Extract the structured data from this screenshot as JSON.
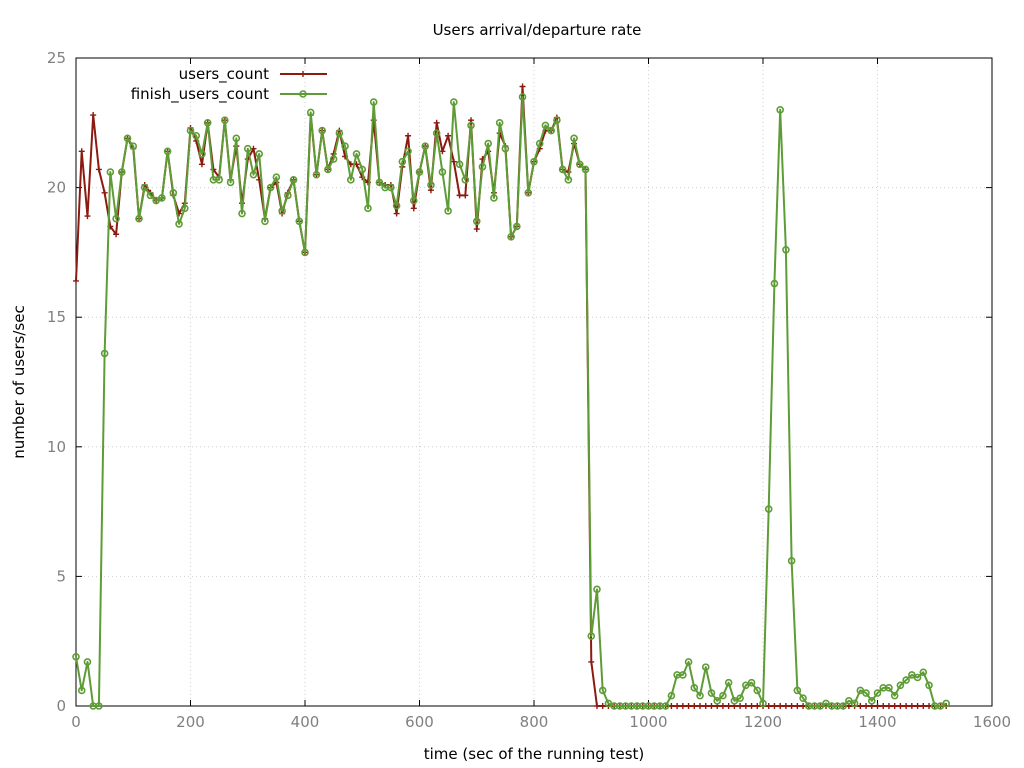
{
  "chart_data": {
    "type": "line",
    "title": "Users arrival/departure rate",
    "xlabel": "time (sec of the running test)",
    "ylabel": "number of users/sec",
    "xlim": [
      0,
      1600
    ],
    "ylim": [
      0,
      25
    ],
    "xticks": [
      0,
      200,
      400,
      600,
      800,
      1000,
      1200,
      1400,
      1600
    ],
    "yticks": [
      0,
      5,
      10,
      15,
      20,
      25
    ],
    "grid": true,
    "legend_position": "top-left",
    "series": [
      {
        "name": "users_count",
        "color": "#8b1a10",
        "marker": "plus",
        "x": [
          0,
          10,
          20,
          30,
          40,
          50,
          60,
          70,
          80,
          90,
          100,
          110,
          120,
          130,
          140,
          150,
          160,
          170,
          180,
          190,
          200,
          210,
          220,
          230,
          240,
          250,
          260,
          270,
          280,
          290,
          300,
          310,
          320,
          330,
          340,
          350,
          360,
          370,
          380,
          390,
          400,
          410,
          420,
          430,
          440,
          450,
          460,
          470,
          480,
          490,
          500,
          510,
          520,
          530,
          540,
          550,
          560,
          570,
          580,
          590,
          600,
          610,
          620,
          630,
          640,
          650,
          660,
          670,
          680,
          690,
          700,
          710,
          720,
          730,
          740,
          750,
          760,
          770,
          780,
          790,
          800,
          810,
          820,
          830,
          840,
          850,
          860,
          870,
          880,
          890,
          900,
          910,
          920,
          930,
          940,
          950,
          960,
          970,
          980,
          990,
          1000,
          1010,
          1020,
          1030,
          1040,
          1050,
          1060,
          1070,
          1080,
          1090,
          1100,
          1110,
          1120,
          1130,
          1140,
          1150,
          1160,
          1170,
          1180,
          1190,
          1200,
          1210,
          1220,
          1230,
          1240,
          1250,
          1260,
          1270,
          1280,
          1290,
          1300,
          1310,
          1320,
          1330,
          1340,
          1350,
          1360,
          1370,
          1380,
          1390,
          1400,
          1410,
          1420,
          1430,
          1440,
          1450,
          1460,
          1470,
          1480,
          1490,
          1500,
          1510,
          1520
        ],
        "values": [
          16.4,
          21.4,
          18.9,
          22.8,
          20.7,
          19.8,
          18.5,
          18.2,
          20.6,
          21.9,
          21.5,
          18.8,
          20.1,
          19.8,
          19.5,
          19.6,
          21.4,
          19.7,
          19.0,
          19.4,
          22.3,
          21.8,
          20.9,
          22.5,
          20.7,
          20.4,
          22.6,
          20.3,
          21.6,
          19.4,
          21.1,
          21.5,
          20.3,
          18.8,
          20.0,
          20.2,
          19.0,
          19.8,
          20.3,
          18.7,
          17.5,
          22.8,
          20.5,
          22.2,
          20.7,
          21.3,
          22.2,
          21.2,
          20.9,
          20.9,
          20.4,
          20.2,
          22.6,
          20.2,
          20.1,
          20.1,
          19.0,
          20.8,
          22.0,
          19.2,
          20.6,
          21.6,
          19.9,
          22.5,
          21.4,
          22.0,
          21.0,
          19.7,
          19.7,
          22.6,
          18.4,
          21.1,
          21.4,
          19.8,
          22.1,
          21.6,
          18.1,
          18.5,
          23.9,
          19.8,
          21.0,
          21.5,
          22.2,
          22.2,
          22.7,
          20.7,
          20.6,
          21.7,
          20.9,
          20.7,
          1.7,
          0,
          0,
          0,
          0,
          0,
          0,
          0,
          0,
          0,
          0,
          0,
          0,
          0,
          0,
          0,
          0,
          0,
          0,
          0,
          0,
          0,
          0,
          0,
          0,
          0,
          0,
          0,
          0,
          0,
          0,
          0,
          0,
          0,
          0,
          0,
          0,
          0,
          0,
          0,
          0,
          0,
          0,
          0,
          0,
          0,
          0,
          0,
          0,
          0,
          0,
          0,
          0,
          0,
          0,
          0,
          0,
          0,
          0,
          0,
          0,
          0,
          0
        ]
      },
      {
        "name": "finish_users_count",
        "color": "#5e9c36",
        "marker": "circle",
        "x": [
          0,
          10,
          20,
          30,
          40,
          50,
          60,
          70,
          80,
          90,
          100,
          110,
          120,
          130,
          140,
          150,
          160,
          170,
          180,
          190,
          200,
          210,
          220,
          230,
          240,
          250,
          260,
          270,
          280,
          290,
          300,
          310,
          320,
          330,
          340,
          350,
          360,
          370,
          380,
          390,
          400,
          410,
          420,
          430,
          440,
          450,
          460,
          470,
          480,
          490,
          500,
          510,
          520,
          530,
          540,
          550,
          560,
          570,
          580,
          590,
          600,
          610,
          620,
          630,
          640,
          650,
          660,
          670,
          680,
          690,
          700,
          710,
          720,
          730,
          740,
          750,
          760,
          770,
          780,
          790,
          800,
          810,
          820,
          830,
          840,
          850,
          860,
          870,
          880,
          890,
          900,
          910,
          920,
          930,
          940,
          950,
          960,
          970,
          980,
          990,
          1000,
          1010,
          1020,
          1030,
          1040,
          1050,
          1060,
          1070,
          1080,
          1090,
          1100,
          1110,
          1120,
          1130,
          1140,
          1150,
          1160,
          1170,
          1180,
          1190,
          1200,
          1210,
          1220,
          1230,
          1240,
          1250,
          1260,
          1270,
          1280,
          1290,
          1300,
          1310,
          1320,
          1330,
          1340,
          1350,
          1360,
          1370,
          1380,
          1390,
          1400,
          1410,
          1420,
          1430,
          1440,
          1450,
          1460,
          1470,
          1480,
          1490,
          1500,
          1510,
          1520
        ],
        "values": [
          1.9,
          0.6,
          1.7,
          0,
          0,
          13.6,
          20.6,
          18.8,
          20.6,
          21.9,
          21.6,
          18.8,
          20.0,
          19.7,
          19.5,
          19.6,
          21.4,
          19.8,
          18.6,
          19.2,
          22.2,
          22.0,
          21.3,
          22.5,
          20.3,
          20.3,
          22.6,
          20.2,
          21.9,
          19.0,
          21.5,
          20.5,
          21.3,
          18.7,
          20.0,
          20.4,
          19.1,
          19.7,
          20.3,
          18.7,
          17.5,
          22.9,
          20.5,
          22.2,
          20.7,
          21.1,
          22.1,
          21.6,
          20.3,
          21.3,
          20.7,
          19.2,
          23.3,
          20.2,
          20.0,
          20.0,
          19.3,
          21.0,
          21.4,
          19.5,
          20.6,
          21.6,
          20.1,
          22.1,
          20.6,
          19.1,
          23.3,
          20.9,
          20.3,
          22.4,
          18.7,
          20.8,
          21.7,
          19.6,
          22.5,
          21.5,
          18.1,
          18.5,
          23.5,
          19.8,
          21.0,
          21.7,
          22.4,
          22.2,
          22.6,
          20.7,
          20.3,
          21.9,
          20.9,
          20.7,
          2.7,
          4.5,
          0.6,
          0.1,
          0,
          0,
          0,
          0,
          0,
          0,
          0,
          0,
          0,
          0,
          0.4,
          1.2,
          1.2,
          1.7,
          0.7,
          0.4,
          1.5,
          0.5,
          0.2,
          0.4,
          0.9,
          0.2,
          0.3,
          0.8,
          0.9,
          0.6,
          0.1,
          7.6,
          16.3,
          23.0,
          17.6,
          5.6,
          0.6,
          0.3,
          0,
          0,
          0,
          0.1,
          0,
          0,
          0,
          0.2,
          0.1,
          0.6,
          0.5,
          0.2,
          0.5,
          0.7,
          0.7,
          0.4,
          0.8,
          1.0,
          1.2,
          1.1,
          1.3,
          0.8,
          0,
          0,
          0.1
        ]
      }
    ]
  }
}
